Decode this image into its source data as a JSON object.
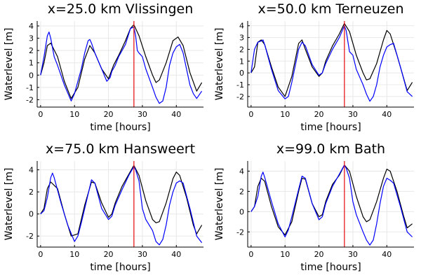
{
  "chart_data": [
    {
      "type": "line",
      "title": "x=25.0 km Vlissingen",
      "xlabel": "time [hours]",
      "ylabel": "Waterlevel [m]",
      "xlim": [
        -1,
        48
      ],
      "ylim": [
        -2.6,
        4.4
      ],
      "xticks": [
        0,
        10,
        20,
        30,
        40
      ],
      "yticks": [
        -2,
        -1,
        0,
        1,
        2,
        3,
        4
      ],
      "grid": true,
      "vline_x": 27.5,
      "series": [
        {
          "color": "#000000",
          "x": [
            0,
            1,
            2,
            3,
            5,
            7,
            9,
            11,
            13,
            14.5,
            16,
            18,
            20,
            21.5,
            23,
            25,
            26.5,
            27.5,
            29,
            31,
            33,
            34,
            35,
            37,
            39,
            40.5,
            42,
            44,
            46,
            47.5
          ],
          "y": [
            0,
            1.0,
            2.4,
            2.6,
            1.5,
            -0.5,
            -1.9,
            -1.0,
            1.3,
            2.4,
            1.8,
            0.5,
            -0.3,
            0.8,
            1.6,
            2.8,
            3.8,
            4.1,
            3.2,
            1.5,
            0.0,
            -0.6,
            -0.4,
            1.0,
            2.8,
            3.1,
            2.4,
            0.2,
            -1.3,
            -0.6
          ]
        },
        {
          "color": "#0000ff",
          "x": [
            0,
            1,
            2,
            2.5,
            3,
            4,
            5,
            7,
            9,
            10,
            11,
            12,
            13,
            14,
            14.5,
            15,
            16,
            18,
            19.5,
            20.5,
            21,
            22,
            23,
            25,
            26.5,
            27.5,
            28,
            28.5,
            29,
            30,
            31,
            33,
            34,
            35,
            36,
            37,
            38,
            39,
            40,
            41,
            42,
            43,
            44,
            45,
            46,
            47.5
          ],
          "y": [
            0,
            1.5,
            3.2,
            3.5,
            3.0,
            1.5,
            0.8,
            -0.8,
            -2.1,
            -1.5,
            -0.5,
            0.5,
            1.8,
            2.8,
            2.9,
            2.6,
            1.8,
            0.5,
            -0.5,
            -0.2,
            0.3,
            0.8,
            1.5,
            2.5,
            3.8,
            3.9,
            3.2,
            2.0,
            1.8,
            1.5,
            0.5,
            -1.0,
            -1.8,
            -2.3,
            -2.1,
            -1.0,
            0.8,
            1.8,
            2.3,
            2.5,
            1.8,
            0.5,
            -0.8,
            -1.5,
            -1.9,
            -1.3
          ]
        }
      ]
    },
    {
      "type": "line",
      "title": "x=50.0 km Terneuzen",
      "xlabel": "time [hours]",
      "ylabel": "Waterlevel [m]",
      "xlim": [
        -1,
        48
      ],
      "ylim": [
        -2.9,
        4.4
      ],
      "xticks": [
        0,
        10,
        20,
        30,
        40
      ],
      "yticks": [
        -2,
        -1,
        0,
        1,
        2,
        3,
        4
      ],
      "grid": true,
      "vline_x": 27.5,
      "series": [
        {
          "color": "#000000",
          "x": [
            0,
            1,
            2,
            3,
            4,
            6,
            8,
            10,
            12,
            14,
            15,
            16,
            18,
            20,
            21,
            22,
            24,
            26,
            27.5,
            29,
            31,
            33,
            34,
            35,
            37,
            39,
            40,
            41,
            43,
            45,
            46,
            47.5
          ],
          "y": [
            0,
            0.5,
            2.6,
            2.8,
            2.4,
            0.5,
            -1.2,
            -2.0,
            -0.3,
            2.5,
            2.8,
            2.0,
            0.5,
            -0.3,
            0.0,
            1.0,
            2.3,
            3.3,
            4.2,
            3.5,
            1.5,
            0.0,
            -0.6,
            -0.5,
            0.8,
            2.8,
            3.6,
            3.3,
            1.5,
            -0.5,
            -1.5,
            -0.8
          ]
        },
        {
          "color": "#0000ff",
          "x": [
            0,
            1,
            2,
            3,
            3.5,
            4,
            6,
            8,
            10,
            11,
            12,
            14,
            15,
            16,
            18,
            20,
            21,
            22,
            24,
            26,
            27.5,
            28,
            29,
            30,
            31,
            33,
            34,
            35,
            36,
            37,
            38,
            39,
            40,
            41,
            42,
            44,
            46,
            47.5
          ],
          "y": [
            0,
            2.0,
            2.6,
            2.7,
            2.8,
            2.4,
            0.3,
            -1.5,
            -2.2,
            -2.0,
            -0.8,
            2.0,
            2.6,
            2.3,
            0.7,
            -0.2,
            0.0,
            0.8,
            2.0,
            3.0,
            4.0,
            3.6,
            1.8,
            1.5,
            0.3,
            -1.0,
            -1.8,
            -2.4,
            -2.0,
            -1.0,
            0.5,
            1.5,
            2.2,
            2.4,
            2.5,
            0.5,
            -1.6,
            -2.0
          ]
        }
      ]
    },
    {
      "type": "line",
      "title": "x=75.0 km Hansweert",
      "xlabel": "time [hours]",
      "ylabel": "Waterlevel [m]",
      "xlim": [
        -1,
        48
      ],
      "ylim": [
        -3.0,
        4.8
      ],
      "xticks": [
        0,
        10,
        20,
        30,
        40
      ],
      "yticks": [
        -2,
        0,
        2,
        4
      ],
      "grid": true,
      "vline_x": 27.5,
      "series": [
        {
          "color": "#000000",
          "x": [
            0,
            1,
            2,
            3,
            5,
            7,
            9,
            11,
            13,
            15,
            16,
            18,
            20,
            21,
            22,
            24,
            26,
            27.5,
            29,
            31,
            33,
            34,
            35,
            37,
            39,
            40,
            41,
            43,
            45,
            46,
            47.5
          ],
          "y": [
            0,
            0.5,
            2.3,
            2.9,
            2.3,
            0.0,
            -2.0,
            -1.8,
            0.8,
            2.9,
            2.8,
            1.0,
            -0.3,
            0.0,
            1.0,
            2.5,
            3.6,
            4.4,
            3.5,
            1.2,
            -0.5,
            -0.8,
            -0.7,
            1.0,
            3.2,
            3.8,
            3.5,
            1.5,
            -1.0,
            -1.8,
            -1.0
          ]
        },
        {
          "color": "#0000ff",
          "x": [
            0,
            1,
            2,
            3,
            3.5,
            4,
            6,
            8,
            10,
            11,
            12,
            14,
            15,
            16,
            18,
            20,
            21,
            22,
            24,
            26,
            27.5,
            28,
            29,
            30,
            31,
            33,
            34,
            35,
            36,
            37,
            38,
            39,
            40,
            41,
            42,
            44,
            46,
            47.5
          ],
          "y": [
            0,
            0.3,
            1.5,
            3.3,
            3.7,
            3.3,
            1.0,
            -1.0,
            -2.5,
            -2.0,
            -0.8,
            1.8,
            3.1,
            2.8,
            0.5,
            -0.5,
            -0.2,
            0.8,
            2.2,
            3.5,
            4.3,
            4.0,
            3.0,
            0.5,
            -0.5,
            -1.5,
            -2.5,
            -2.8,
            -2.3,
            -1.0,
            0.8,
            2.0,
            2.8,
            3.0,
            2.8,
            0.5,
            -2.0,
            -2.6
          ]
        }
      ]
    },
    {
      "type": "line",
      "title": "x=99.0 km Bath",
      "xlabel": "time [hours]",
      "ylabel": "Waterlevel [m]",
      "xlim": [
        -1,
        48
      ],
      "ylim": [
        -3.5,
        5.0
      ],
      "xticks": [
        0,
        10,
        20,
        30,
        40
      ],
      "yticks": [
        -2,
        0,
        2,
        4
      ],
      "grid": true,
      "vline_x": 27.5,
      "series": [
        {
          "color": "#000000",
          "x": [
            0,
            1,
            2,
            3,
            4,
            6,
            8,
            10,
            12,
            14,
            15,
            16,
            18,
            20,
            21,
            22,
            24,
            26,
            27.5,
            29,
            31,
            33,
            34,
            35,
            37,
            39,
            40,
            41,
            43,
            45,
            46,
            47.5
          ],
          "y": [
            0,
            0.5,
            2.5,
            3.3,
            3.0,
            0.5,
            -1.5,
            -2.3,
            -1.0,
            2.0,
            3.3,
            3.2,
            0.8,
            -0.5,
            -0.3,
            1.0,
            2.7,
            3.6,
            4.6,
            4.0,
            1.5,
            -0.5,
            -1.0,
            -0.8,
            1.0,
            3.3,
            4.2,
            4.0,
            2.0,
            -0.5,
            -1.6,
            -1.2
          ]
        },
        {
          "color": "#0000ff",
          "x": [
            0,
            1,
            2,
            3,
            3.5,
            4,
            6,
            8,
            10,
            11,
            12,
            14,
            15,
            16,
            18,
            20,
            21,
            22,
            24,
            26,
            27.5,
            28,
            29,
            30,
            31,
            33,
            34,
            35,
            36,
            37,
            38,
            39,
            40,
            41,
            42,
            44,
            46,
            47.5
          ],
          "y": [
            0,
            0.5,
            1.5,
            3.5,
            3.9,
            3.4,
            1.0,
            -1.2,
            -2.5,
            -1.8,
            -0.5,
            2.2,
            3.5,
            3.3,
            0.8,
            -0.8,
            -0.5,
            0.8,
            2.5,
            3.7,
            4.6,
            4.3,
            3.3,
            1.0,
            -0.3,
            -2.0,
            -2.8,
            -3.3,
            -2.8,
            -1.2,
            0.8,
            2.5,
            3.3,
            3.1,
            2.8,
            0.5,
            -2.0,
            -2.5
          ]
        }
      ]
    }
  ]
}
